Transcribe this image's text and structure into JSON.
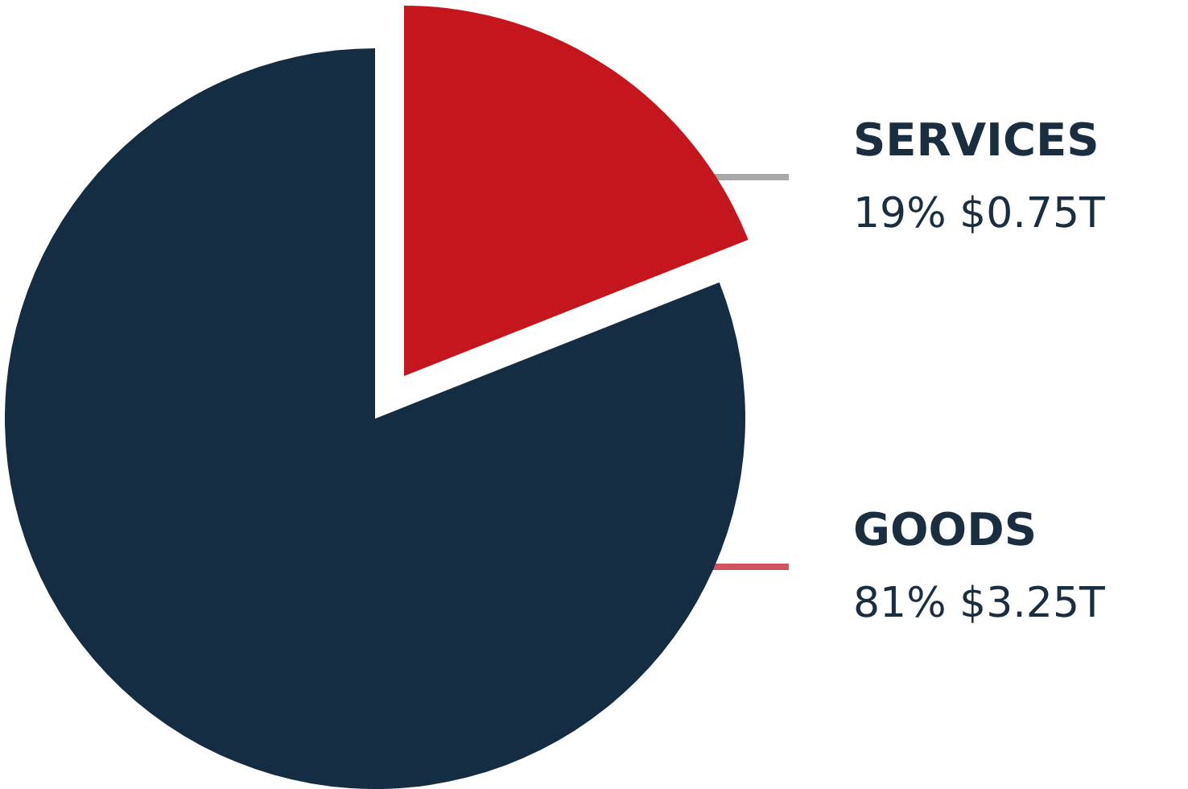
{
  "chart_data": {
    "type": "pie",
    "categories": [
      "SERVICES",
      "GOODS"
    ],
    "values": [
      19,
      81
    ],
    "colors": [
      "#c4161c",
      "#152d42"
    ],
    "value_labels": [
      "19% $0.75T",
      "81% $3.25T"
    ],
    "legend": false
  }
}
